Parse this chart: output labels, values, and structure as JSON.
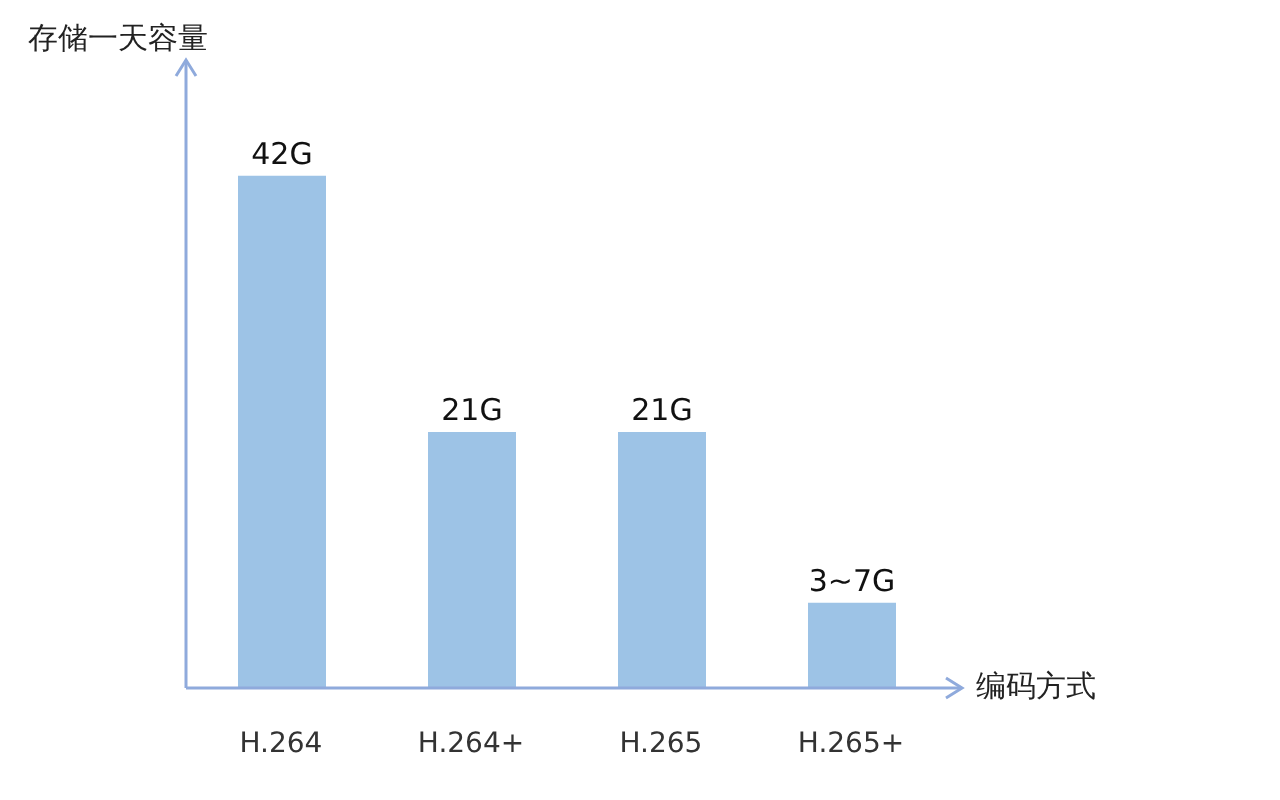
{
  "chart_data": {
    "type": "bar",
    "xlabel": "编码方式",
    "ylabel": "存储一天容量",
    "categories": [
      "H.264",
      "H.264+",
      "H.265",
      "H.265+"
    ],
    "values": [
      42,
      21,
      21,
      7
    ],
    "value_labels": [
      "42G",
      "21G",
      "21G",
      "3~7G"
    ],
    "ylim": [
      0,
      51
    ],
    "tick_labels": "x",
    "color": "#9dc3e6",
    "legend": false,
    "grid": false
  }
}
